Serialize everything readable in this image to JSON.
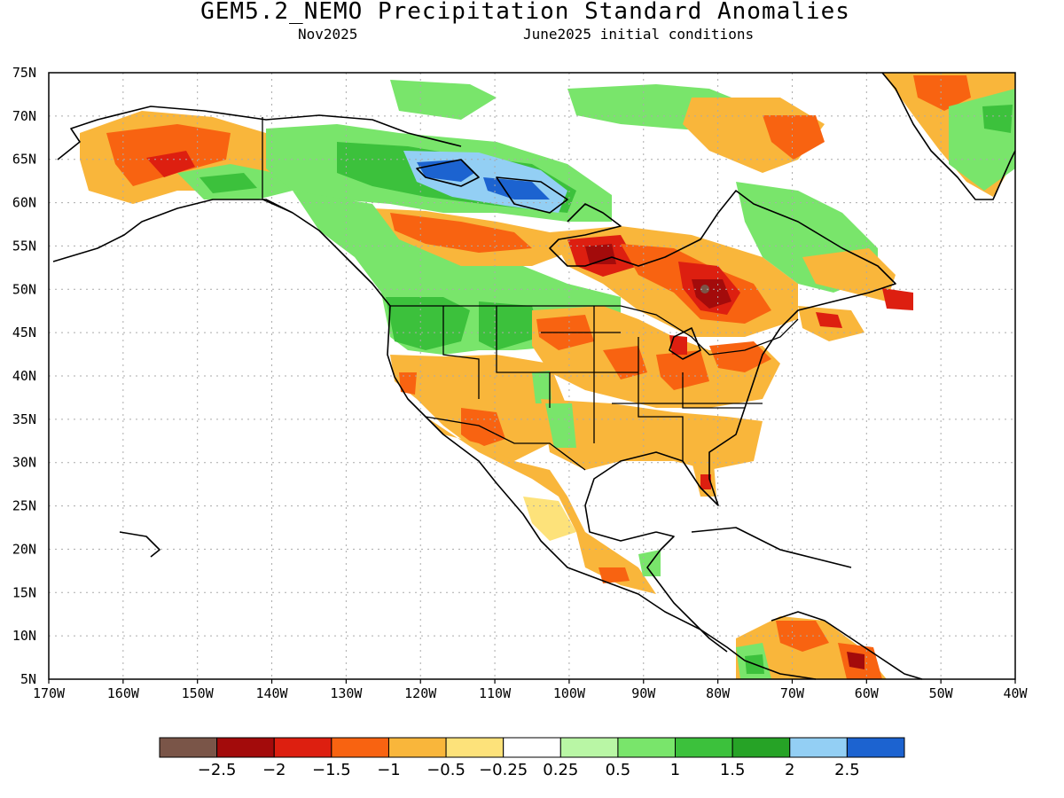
{
  "title": "GEM5.2_NEMO Precipitation Standard Anomalies",
  "subtitle_left": "Nov2025",
  "subtitle_right": "June2025 initial conditions",
  "lat_labels": [
    "75N",
    "70N",
    "65N",
    "60N",
    "55N",
    "50N",
    "45N",
    "40N",
    "35N",
    "30N",
    "25N",
    "20N",
    "15N",
    "10N",
    "5N"
  ],
  "lon_labels": [
    "170W",
    "160W",
    "150W",
    "140W",
    "130W",
    "120W",
    "110W",
    "100W",
    "90W",
    "80W",
    "70W",
    "60W",
    "50W",
    "40W"
  ],
  "legend": {
    "colors": [
      "#7a5548",
      "#a30b0b",
      "#dd1f10",
      "#f86311",
      "#f9b63b",
      "#fde27a",
      "#ffffff",
      "#b9f6a5",
      "#79e56b",
      "#3cc13c",
      "#26a326",
      "#93cff4",
      "#1c63d0"
    ],
    "labels": [
      "−2.5",
      "−2",
      "−1.5",
      "−1",
      "−0.5",
      "−0.25",
      "0.25",
      "0.5",
      "1",
      "1.5",
      "2",
      "2.5"
    ]
  }
}
